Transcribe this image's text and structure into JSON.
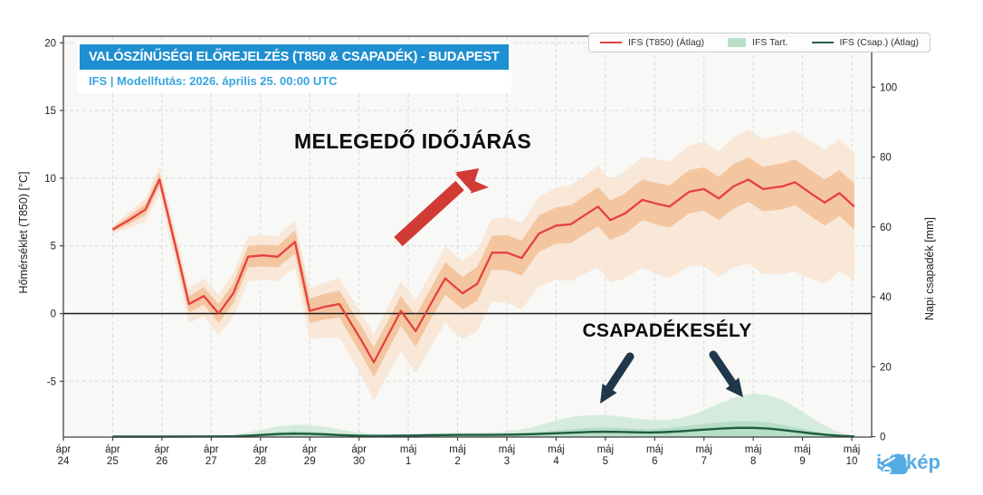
{
  "header": {
    "title": "VALÓSZÍNŰSÉGI ELŐREJELZÉS (T850 & CSAPADÉK) - BUDAPEST",
    "subtitle": "IFS | Modellfutás: 2026. április 25. 00:00 UTC"
  },
  "legend": {
    "items": [
      {
        "label": "IFS (T850) (Átlag)",
        "swatch": "red-line"
      },
      {
        "label": "IFS Tart.",
        "swatch": "green-patch"
      },
      {
        "label": "IFS (Csap.) (Átlag)",
        "swatch": "darkgreen-line"
      }
    ]
  },
  "annotations": {
    "warming": "MELEGEDŐ IDŐJÁRÁS",
    "precip_chance": "CSAPADÉKESÉLY"
  },
  "logo": {
    "text": "időkép"
  },
  "colors": {
    "title_blue": "#1e8fd0",
    "subtitle_blue": "#38a5de",
    "temp_line": "#e6413f",
    "temp_band_inner": "#f3c29a",
    "temp_band_outer": "#f9e3cf",
    "precip_line": "#1e5b41",
    "precip_band_outer": "#cfe9d8",
    "precip_band_inner": "#abd9bf",
    "grid": "#d9d9d9",
    "spine": "#444444",
    "zero_line": "#1a1a1a",
    "tick_text": "#222222",
    "plot_bg": "#f8f8f7",
    "red_arrow": "#d23b35",
    "navy_arrow": "#20374a",
    "logo_blue": "#55ace5"
  },
  "chart_data": {
    "type": "line",
    "title": "VALÓSZÍNŰSÉGI ELŐREJELZÉS (T850 & CSAPADÉK) - BUDAPEST",
    "subtitle": "IFS | Modellfutás: 2026. április 25. 00:00 UTC",
    "grid": true,
    "legend_position": "top-right",
    "x_axis": {
      "unit": "days_from_apr_24",
      "range": [
        0,
        16.4
      ],
      "ticks": [
        {
          "month": "ápr",
          "day": "24",
          "d": 0
        },
        {
          "month": "ápr",
          "day": "25",
          "d": 1
        },
        {
          "month": "ápr",
          "day": "26",
          "d": 2
        },
        {
          "month": "ápr",
          "day": "27",
          "d": 3
        },
        {
          "month": "ápr",
          "day": "28",
          "d": 4
        },
        {
          "month": "ápr",
          "day": "29",
          "d": 5
        },
        {
          "month": "ápr",
          "day": "30",
          "d": 6
        },
        {
          "month": "máj",
          "day": "1",
          "d": 7
        },
        {
          "month": "máj",
          "day": "2",
          "d": 8
        },
        {
          "month": "máj",
          "day": "3",
          "d": 9
        },
        {
          "month": "máj",
          "day": "4",
          "d": 10
        },
        {
          "month": "máj",
          "day": "5",
          "d": 11
        },
        {
          "month": "máj",
          "day": "6",
          "d": 12
        },
        {
          "month": "máj",
          "day": "7",
          "d": 13
        },
        {
          "month": "máj",
          "day": "8",
          "d": 14
        },
        {
          "month": "máj",
          "day": "9",
          "d": 15
        },
        {
          "month": "máj",
          "day": "10",
          "d": 16
        }
      ]
    },
    "temp": {
      "label": "Hőmérséklet (T850) [°C]",
      "ticks": [
        20,
        15,
        10,
        5,
        0,
        -5
      ],
      "range": [
        -9.1,
        20.5
      ],
      "series_name": "IFS (T850) (Átlag)",
      "days": [
        1.0,
        1.33,
        1.67,
        1.95,
        2.3,
        2.55,
        2.85,
        3.15,
        3.45,
        3.75,
        4.05,
        4.35,
        4.7,
        5.0,
        5.3,
        5.6,
        6.05,
        6.3,
        6.85,
        7.15,
        7.5,
        7.75,
        8.1,
        8.4,
        8.7,
        9.0,
        9.3,
        9.65,
        10.0,
        10.3,
        10.55,
        10.85,
        11.1,
        11.4,
        11.75,
        12.05,
        12.3,
        12.7,
        13.0,
        13.3,
        13.6,
        13.9,
        14.2,
        14.6,
        14.85,
        15.2,
        15.45,
        15.75,
        16.05
      ],
      "mean": [
        6.2,
        6.9,
        7.7,
        9.9,
        4.6,
        0.7,
        1.3,
        0.0,
        1.5,
        4.2,
        4.3,
        4.2,
        5.3,
        0.2,
        0.5,
        0.7,
        -2.0,
        -3.6,
        0.2,
        -1.3,
        1.0,
        2.6,
        1.5,
        2.2,
        4.5,
        4.5,
        4.1,
        5.9,
        6.5,
        6.6,
        7.2,
        7.9,
        6.9,
        7.4,
        8.4,
        8.1,
        7.9,
        9.0,
        9.2,
        8.5,
        9.4,
        9.9,
        9.2,
        9.4,
        9.7,
        8.8,
        8.2,
        8.9,
        7.9
      ],
      "inner_hi": [
        6.35,
        7.2,
        8.1,
        10.4,
        5.15,
        1.3,
        1.95,
        0.7,
        2.25,
        5.0,
        5.1,
        5.0,
        6.15,
        1.1,
        1.45,
        1.7,
        -0.95,
        -2.5,
        1.3,
        -0.15,
        2.15,
        3.8,
        2.7,
        3.45,
        5.75,
        5.8,
        5.4,
        7.25,
        7.85,
        8.0,
        8.6,
        9.35,
        8.35,
        8.9,
        9.9,
        9.65,
        9.45,
        10.6,
        10.8,
        10.1,
        11.05,
        11.55,
        10.85,
        11.1,
        11.4,
        10.5,
        9.9,
        10.6,
        9.6
      ],
      "inner_lo": [
        6.05,
        6.6,
        7.3,
        9.4,
        4.05,
        0.1,
        0.65,
        -0.7,
        0.75,
        3.4,
        3.5,
        3.4,
        4.45,
        -0.7,
        -0.45,
        -0.3,
        -3.05,
        -4.7,
        -0.9,
        -2.45,
        -0.15,
        1.4,
        0.3,
        0.95,
        3.25,
        3.2,
        2.8,
        4.55,
        5.15,
        5.2,
        5.8,
        6.45,
        5.45,
        5.9,
        6.9,
        6.55,
        6.35,
        7.4,
        7.6,
        6.9,
        7.75,
        8.25,
        7.55,
        7.7,
        8.0,
        7.1,
        6.5,
        7.2,
        6.2
      ],
      "outer_hi": [
        6.5,
        7.5,
        8.5,
        10.9,
        5.7,
        1.9,
        2.6,
        1.4,
        2.95,
        5.7,
        5.8,
        5.7,
        6.9,
        1.9,
        2.3,
        2.6,
        0.0,
        -1.5,
        2.4,
        1.0,
        3.3,
        5.0,
        3.9,
        4.7,
        7.0,
        7.1,
        6.7,
        8.6,
        9.3,
        9.5,
        10.1,
        10.9,
        9.9,
        10.5,
        11.6,
        11.4,
        11.2,
        12.4,
        12.7,
        12.0,
        13.0,
        13.6,
        12.9,
        13.2,
        13.5,
        12.7,
        12.1,
        12.9,
        11.9
      ],
      "outer_lo": [
        5.9,
        6.3,
        6.8,
        8.8,
        3.3,
        -0.7,
        -0.2,
        -1.6,
        -0.2,
        2.4,
        2.5,
        2.4,
        3.4,
        -1.9,
        -1.8,
        -1.8,
        -4.6,
        -6.4,
        -2.8,
        -4.4,
        -2.2,
        -0.7,
        -1.9,
        -1.3,
        0.9,
        0.8,
        0.3,
        2.0,
        2.5,
        2.4,
        2.9,
        3.4,
        2.3,
        2.6,
        3.4,
        2.9,
        2.6,
        3.5,
        3.5,
        2.7,
        3.4,
        3.7,
        2.9,
        2.9,
        3.1,
        2.5,
        2.2,
        3.1,
        2.4
      ]
    },
    "precip": {
      "label": "Napi csapadék [mm]",
      "ticks": [
        100,
        80,
        60,
        40,
        20,
        0
      ],
      "range": [
        0,
        114.6
      ],
      "series_name": "IFS (Csap.) (Átlag)",
      "band_name": "IFS Tart.",
      "days": [
        1.0,
        2.0,
        3.0,
        3.5,
        3.8,
        4.1,
        4.4,
        4.7,
        5.0,
        5.3,
        5.6,
        5.9,
        6.2,
        6.5,
        6.8,
        7.1,
        7.4,
        7.7,
        8.0,
        8.3,
        8.6,
        8.9,
        9.2,
        9.5,
        9.8,
        10.1,
        10.4,
        10.7,
        11.0,
        11.3,
        11.6,
        11.9,
        12.2,
        12.5,
        12.8,
        13.1,
        13.4,
        13.7,
        14.0,
        14.3,
        14.6,
        14.9,
        15.2,
        15.5,
        15.8,
        16.05
      ],
      "mean": [
        0,
        0,
        0.05,
        0.1,
        0.3,
        0.55,
        0.75,
        0.85,
        0.8,
        0.65,
        0.45,
        0.3,
        0.2,
        0.2,
        0.25,
        0.3,
        0.4,
        0.45,
        0.5,
        0.5,
        0.5,
        0.55,
        0.6,
        0.7,
        0.85,
        1.0,
        1.2,
        1.35,
        1.4,
        1.35,
        1.25,
        1.2,
        1.3,
        1.5,
        1.8,
        2.1,
        2.35,
        2.5,
        2.5,
        2.3,
        1.9,
        1.4,
        0.9,
        0.5,
        0.2,
        0.05
      ],
      "band_hi": [
        0,
        0,
        0.2,
        0.6,
        1.3,
        2.2,
        3.0,
        3.4,
        3.3,
        2.8,
        2.1,
        1.4,
        0.9,
        0.7,
        0.7,
        0.8,
        0.9,
        1.0,
        1.1,
        1.1,
        1.2,
        1.4,
        1.8,
        2.6,
        3.8,
        5.0,
        5.8,
        6.2,
        6.2,
        5.8,
        5.2,
        4.8,
        4.7,
        5.2,
        6.4,
        8.2,
        10.0,
        11.6,
        12.3,
        11.9,
        10.4,
        8.0,
        5.3,
        2.8,
        1.0,
        0.2
      ],
      "inner_hi": [
        0,
        0,
        0.1,
        0.2,
        0.6,
        1.0,
        1.4,
        1.6,
        1.5,
        1.2,
        0.85,
        0.6,
        0.4,
        0.4,
        0.45,
        0.55,
        0.65,
        0.7,
        0.75,
        0.8,
        0.8,
        0.9,
        1.0,
        1.2,
        1.5,
        1.9,
        2.2,
        2.5,
        2.6,
        2.5,
        2.3,
        2.2,
        2.4,
        2.8,
        3.3,
        3.8,
        4.2,
        4.4,
        4.4,
        4.1,
        3.4,
        2.5,
        1.6,
        0.9,
        0.35,
        0.1
      ]
    }
  }
}
